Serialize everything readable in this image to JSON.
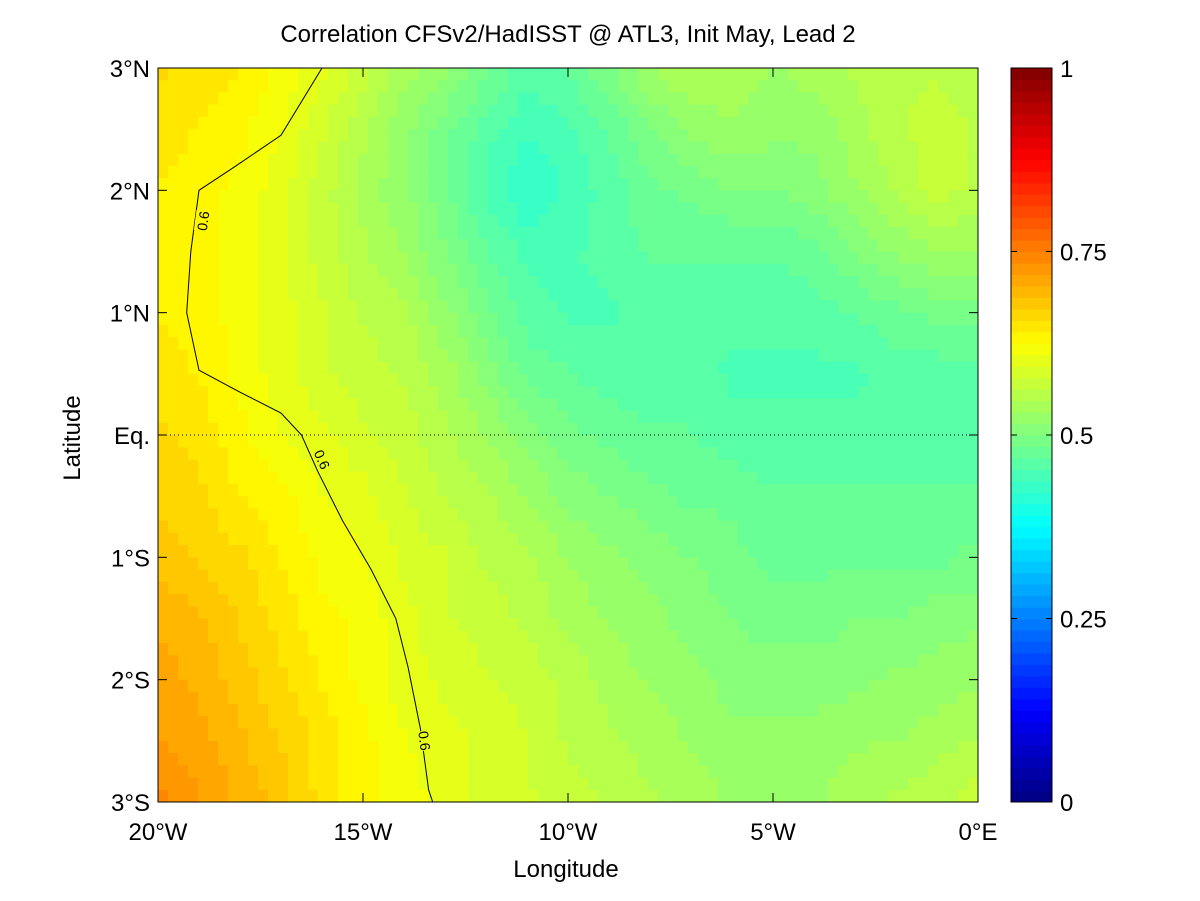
{
  "chart_data": {
    "type": "heatmap",
    "title": "Correlation CFSv2/HadISST @ ATL3, Init May, Lead 2",
    "xlabel": "Longitude",
    "ylabel": "Latitude",
    "xlim": [
      -20,
      0
    ],
    "ylim": [
      -3,
      3
    ],
    "x_ticks": [
      {
        "value": -20,
        "label": "20°W"
      },
      {
        "value": -15,
        "label": "15°W"
      },
      {
        "value": -10,
        "label": "10°W"
      },
      {
        "value": -5,
        "label": "5°W"
      },
      {
        "value": 0,
        "label": "0°E"
      }
    ],
    "y_ticks": [
      {
        "value": 3,
        "label": "3°N"
      },
      {
        "value": 2,
        "label": "2°N"
      },
      {
        "value": 1,
        "label": "1°N"
      },
      {
        "value": 0,
        "label": "Eq."
      },
      {
        "value": -1,
        "label": "1°S"
      },
      {
        "value": -2,
        "label": "2°S"
      },
      {
        "value": -3,
        "label": "3°S"
      }
    ],
    "x": [
      -20,
      -19,
      -18,
      -17,
      -16,
      -15,
      -14,
      -13,
      -12,
      -11,
      -10,
      -9,
      -8,
      -7,
      -6,
      -5,
      -4,
      -3,
      -2,
      -1,
      0
    ],
    "y": [
      3,
      2.5,
      2,
      1.5,
      1,
      0.5,
      0,
      -0.5,
      -1,
      -1.5,
      -2,
      -2.5,
      -3
    ],
    "z": [
      [
        0.66,
        0.65,
        0.64,
        0.62,
        0.6,
        0.57,
        0.54,
        0.52,
        0.49,
        0.46,
        0.47,
        0.5,
        0.53,
        0.55,
        0.54,
        0.53,
        0.54,
        0.55,
        0.56,
        0.56,
        0.55
      ],
      [
        0.65,
        0.64,
        0.63,
        0.61,
        0.58,
        0.55,
        0.52,
        0.49,
        0.46,
        0.44,
        0.45,
        0.47,
        0.5,
        0.52,
        0.53,
        0.52,
        0.52,
        0.54,
        0.56,
        0.57,
        0.56
      ],
      [
        0.64,
        0.63,
        0.62,
        0.6,
        0.57,
        0.54,
        0.52,
        0.49,
        0.45,
        0.42,
        0.44,
        0.46,
        0.48,
        0.49,
        0.5,
        0.5,
        0.51,
        0.53,
        0.55,
        0.57,
        0.56
      ],
      [
        0.64,
        0.63,
        0.62,
        0.6,
        0.57,
        0.55,
        0.53,
        0.5,
        0.47,
        0.45,
        0.45,
        0.46,
        0.47,
        0.47,
        0.47,
        0.47,
        0.48,
        0.5,
        0.52,
        0.53,
        0.53
      ],
      [
        0.64,
        0.63,
        0.62,
        0.6,
        0.58,
        0.56,
        0.55,
        0.52,
        0.49,
        0.46,
        0.45,
        0.45,
        0.46,
        0.46,
        0.46,
        0.46,
        0.46,
        0.47,
        0.48,
        0.49,
        0.49
      ],
      [
        0.65,
        0.64,
        0.62,
        0.6,
        0.58,
        0.57,
        0.56,
        0.54,
        0.51,
        0.48,
        0.47,
        0.46,
        0.46,
        0.46,
        0.45,
        0.45,
        0.45,
        0.45,
        0.46,
        0.46,
        0.46
      ],
      [
        0.66,
        0.65,
        0.63,
        0.61,
        0.6,
        0.58,
        0.57,
        0.55,
        0.53,
        0.51,
        0.49,
        0.48,
        0.47,
        0.47,
        0.46,
        0.46,
        0.46,
        0.46,
        0.46,
        0.46,
        0.46
      ],
      [
        0.67,
        0.66,
        0.64,
        0.63,
        0.61,
        0.6,
        0.58,
        0.56,
        0.55,
        0.53,
        0.51,
        0.5,
        0.49,
        0.48,
        0.48,
        0.47,
        0.47,
        0.47,
        0.47,
        0.47,
        0.47
      ],
      [
        0.68,
        0.67,
        0.66,
        0.64,
        0.62,
        0.61,
        0.59,
        0.58,
        0.56,
        0.55,
        0.53,
        0.52,
        0.51,
        0.5,
        0.49,
        0.48,
        0.48,
        0.48,
        0.48,
        0.48,
        0.49
      ],
      [
        0.7,
        0.69,
        0.67,
        0.65,
        0.63,
        0.62,
        0.6,
        0.58,
        0.57,
        0.56,
        0.54,
        0.53,
        0.52,
        0.51,
        0.5,
        0.49,
        0.49,
        0.5,
        0.5,
        0.51,
        0.51
      ],
      [
        0.71,
        0.7,
        0.68,
        0.66,
        0.64,
        0.62,
        0.6,
        0.59,
        0.58,
        0.57,
        0.56,
        0.54,
        0.53,
        0.52,
        0.51,
        0.51,
        0.51,
        0.51,
        0.52,
        0.52,
        0.53
      ],
      [
        0.72,
        0.71,
        0.69,
        0.67,
        0.65,
        0.63,
        0.61,
        0.6,
        0.59,
        0.58,
        0.56,
        0.55,
        0.54,
        0.53,
        0.52,
        0.52,
        0.52,
        0.53,
        0.53,
        0.54,
        0.55
      ],
      [
        0.74,
        0.72,
        0.7,
        0.68,
        0.65,
        0.63,
        0.62,
        0.6,
        0.59,
        0.58,
        0.57,
        0.56,
        0.55,
        0.54,
        0.53,
        0.53,
        0.53,
        0.54,
        0.55,
        0.56,
        0.57
      ]
    ],
    "equator_reference_line": 0,
    "contour": {
      "level": 0.6,
      "label": "0.6",
      "points": [
        [
          -16,
          3
        ],
        [
          -17,
          2.45
        ],
        [
          -18.1,
          2.2
        ],
        [
          -19,
          2
        ],
        [
          -19.2,
          1.5
        ],
        [
          -19.3,
          1
        ],
        [
          -19,
          0.53
        ],
        [
          -18,
          0.35
        ],
        [
          -17,
          0.18
        ],
        [
          -16.5,
          0
        ],
        [
          -16.1,
          -0.3
        ],
        [
          -15.5,
          -0.7
        ],
        [
          -14.8,
          -1.1
        ],
        [
          -14.2,
          -1.5
        ],
        [
          -13.9,
          -1.9
        ],
        [
          -13.6,
          -2.4
        ],
        [
          -13.4,
          -2.9
        ],
        [
          -13.3,
          -3
        ]
      ],
      "label_positions": [
        [
          -18.9,
          1.75
        ],
        [
          -16,
          -0.2
        ],
        [
          -13.5,
          -2.5
        ]
      ]
    },
    "colorbar": {
      "colormap": "jet",
      "range": [
        0,
        1
      ],
      "ticks": [
        0,
        0.25,
        0.5,
        0.75,
        1
      ],
      "tick_labels": [
        "0",
        "0.25",
        "0.5",
        "0.75",
        "1"
      ]
    }
  }
}
